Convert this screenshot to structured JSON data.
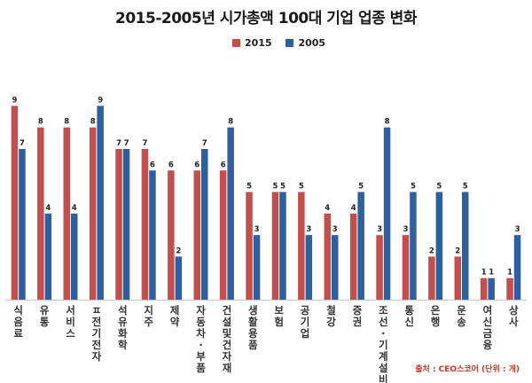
{
  "chart_data": {
    "type": "bar",
    "title": "2015-2005년 시가총액 100대 기업 업종 변화",
    "categories": [
      "식음료",
      "유통",
      "서비스",
      "IT전기전자",
      "석유화학",
      "지주",
      "제약",
      "자동차·부품",
      "건설및건자재",
      "생활용품",
      "보험",
      "공기업",
      "철강",
      "증권",
      "조선·기계설비",
      "통신",
      "은행",
      "운송",
      "여신금융",
      "상사"
    ],
    "category_display": [
      "식음료",
      "유통",
      "서비스",
      "ㅍ전기전자",
      "석유화학",
      "지주",
      "제약",
      "자동차·부품",
      "건설및건자재",
      "생활용품",
      "보험",
      "공기업",
      "철강",
      "증권",
      "조선·기계설비",
      "통신",
      "은행",
      "운송",
      "여신금융",
      "상사"
    ],
    "series": [
      {
        "name": "2015",
        "color": "#c0504d",
        "values": [
          9,
          8,
          8,
          8,
          7,
          7,
          6,
          6,
          6,
          5,
          5,
          5,
          4,
          4,
          3,
          3,
          2,
          2,
          1,
          1
        ]
      },
      {
        "name": "2005",
        "color": "#2e5f9e",
        "values": [
          7,
          4,
          4,
          9,
          7,
          6,
          2,
          7,
          8,
          3,
          5,
          3,
          3,
          5,
          8,
          5,
          5,
          5,
          1,
          3
        ]
      }
    ],
    "ylim": [
      0,
      10
    ],
    "grid": false,
    "legend": "top-center",
    "xlabel": "",
    "ylabel": ""
  },
  "source_note": "출처 : CEO스코어 (단위 : 개)"
}
